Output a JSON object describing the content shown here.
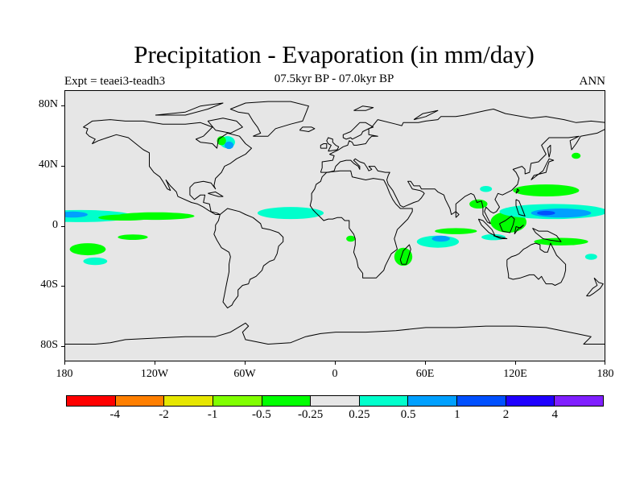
{
  "title": "Precipitation - Evaporation (in mm/day)",
  "subtitle": "07.5kyr BP - 07.0kyr BP",
  "experiment": "Expt = teaei3-teadh3",
  "season": "ANN",
  "map": {
    "projection": "cylindrical equidistant",
    "lon_range": [
      -180,
      180
    ],
    "lat_range": [
      -90,
      90
    ],
    "background_color": "#e6e6e6",
    "coastline_color": "#000000",
    "y_ticks": [
      {
        "lat": 80,
        "label": "80N"
      },
      {
        "lat": 40,
        "label": "40N"
      },
      {
        "lat": 0,
        "label": "0"
      },
      {
        "lat": -40,
        "label": "40S"
      },
      {
        "lat": -80,
        "label": "80S"
      }
    ],
    "x_ticks": [
      {
        "lon": -180,
        "label": "180"
      },
      {
        "lon": -120,
        "label": "120W"
      },
      {
        "lon": -60,
        "label": "60W"
      },
      {
        "lon": 0,
        "label": "0"
      },
      {
        "lon": 60,
        "label": "60E"
      },
      {
        "lon": 120,
        "label": "120E"
      },
      {
        "lon": 180,
        "label": "180"
      }
    ],
    "anomaly_regions": [
      {
        "name": "north-pacific-itcz",
        "level": 0.5,
        "lon": -170,
        "lat": 7,
        "dlon": 35,
        "dlat": 4
      },
      {
        "name": "north-pacific-itcz-core",
        "level": 1,
        "lon": -175,
        "lat": 8,
        "dlon": 10,
        "dlat": 2
      },
      {
        "name": "east-pacific-band",
        "level": -0.25,
        "lon": -120,
        "lat": 7,
        "dlon": 26,
        "dlat": 2.5
      },
      {
        "name": "east-pacific-band-2",
        "level": -0.25,
        "lon": -140,
        "lat": 6,
        "dlon": 18,
        "dlat": 2
      },
      {
        "name": "atlantic-itcz",
        "level": 0.25,
        "lon": -30,
        "lat": 9,
        "dlon": 22,
        "dlat": 4
      },
      {
        "name": "south-pacific-1",
        "level": -0.25,
        "lon": -165,
        "lat": -15,
        "dlon": 12,
        "dlat": 4
      },
      {
        "name": "south-pacific-2",
        "level": 0.5,
        "lon": -160,
        "lat": -23,
        "dlon": 8,
        "dlat": 2.5
      },
      {
        "name": "south-pacific-3",
        "level": -0.25,
        "lon": -135,
        "lat": -7,
        "dlon": 10,
        "dlat": 1.8
      },
      {
        "name": "hudson-bay-1",
        "level": 0.5,
        "lon": -72,
        "lat": 56,
        "dlon": 5,
        "dlat": 4
      },
      {
        "name": "hudson-bay-2",
        "level": 1,
        "lon": -71,
        "lat": 54,
        "dlon": 3,
        "dlat": 2.5
      },
      {
        "name": "hudson-bay-green",
        "level": -0.25,
        "lon": -76,
        "lat": 57,
        "dlon": 3,
        "dlat": 3
      },
      {
        "name": "west-africa",
        "level": -0.25,
        "lon": 10,
        "lat": -8,
        "dlon": 3,
        "dlat": 2
      },
      {
        "name": "madagascar",
        "level": -0.25,
        "lon": 45,
        "lat": -20,
        "dlon": 6,
        "dlat": 6
      },
      {
        "name": "indian-ocean-south",
        "level": 0.5,
        "lon": 68,
        "lat": -10,
        "dlon": 14,
        "dlat": 4
      },
      {
        "name": "indian-ocean-south-2",
        "level": 1,
        "lon": 70,
        "lat": -8,
        "dlon": 6,
        "dlat": 2
      },
      {
        "name": "indian-ocean-green",
        "level": -0.25,
        "lon": 80,
        "lat": -3,
        "dlon": 14,
        "dlat": 2
      },
      {
        "name": "bay-of-bengal",
        "level": -0.25,
        "lon": 95,
        "lat": 15,
        "dlon": 6,
        "dlat": 3
      },
      {
        "name": "maritime-continent",
        "level": -0.25,
        "lon": 115,
        "lat": 3,
        "dlon": 12,
        "dlat": 7
      },
      {
        "name": "west-pacific-warm-pool",
        "level": 0.5,
        "lon": 145,
        "lat": 10,
        "dlon": 36,
        "dlat": 5
      },
      {
        "name": "west-pacific-core",
        "level": 1,
        "lon": 150,
        "lat": 9,
        "dlon": 20,
        "dlat": 3
      },
      {
        "name": "west-pacific-deep",
        "level": 2,
        "lon": 140,
        "lat": 9,
        "dlon": 6,
        "dlat": 1.5
      },
      {
        "name": "northwest-pacific",
        "level": -0.25,
        "lon": 140,
        "lat": 24,
        "dlon": 22,
        "dlat": 4
      },
      {
        "name": "north-pacific-small",
        "level": -0.25,
        "lon": 160,
        "lat": 47,
        "dlon": 3,
        "dlat": 2
      },
      {
        "name": "south-west-pacific",
        "level": -0.25,
        "lon": 150,
        "lat": -10,
        "dlon": 18,
        "dlat": 2.5
      },
      {
        "name": "indonesia-blue",
        "level": 0.5,
        "lon": 105,
        "lat": -7,
        "dlon": 8,
        "dlat": 2
      },
      {
        "name": "south-china-sea",
        "level": 0.5,
        "lon": 100,
        "lat": 25,
        "dlon": 4,
        "dlat": 2
      },
      {
        "name": "coral-sea",
        "level": 0.5,
        "lon": 170,
        "lat": -20,
        "dlon": 4,
        "dlat": 2
      }
    ]
  },
  "colorbar": {
    "colors": [
      "#ff0000",
      "#ff7f00",
      "#e6e600",
      "#80ff00",
      "#00ff00",
      "#e6e6e6",
      "#00ffcc",
      "#00a0ff",
      "#0050ff",
      "#2000ff",
      "#8020ff"
    ],
    "levels": [
      {
        "boundary": 1,
        "label": "-4"
      },
      {
        "boundary": 2,
        "label": "-2"
      },
      {
        "boundary": 3,
        "label": "-1"
      },
      {
        "boundary": 4,
        "label": "-0.5"
      },
      {
        "boundary": 5,
        "label": "-0.25"
      },
      {
        "boundary": 6,
        "label": "0.25"
      },
      {
        "boundary": 7,
        "label": "0.5"
      },
      {
        "boundary": 8,
        "label": "1"
      },
      {
        "boundary": 9,
        "label": "2"
      },
      {
        "boundary": 10,
        "label": "4"
      }
    ]
  }
}
